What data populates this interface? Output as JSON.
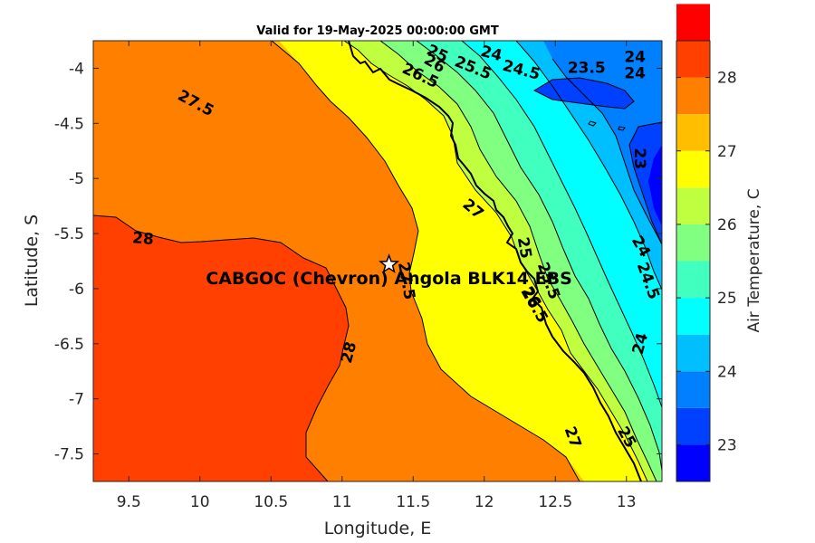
{
  "title": "Valid for 19-May-2025 00:00:00 GMT",
  "map": {
    "xlabel": "Longitude, E",
    "ylabel": "Latitude, S",
    "xlim": [
      9.25,
      13.25
    ],
    "ylim": [
      -7.75,
      -3.75
    ],
    "xticks": [
      {
        "value": 9.5,
        "label": "9.5"
      },
      {
        "value": 10,
        "label": "10"
      },
      {
        "value": 10.5,
        "label": "10.5"
      },
      {
        "value": 11,
        "label": "11"
      },
      {
        "value": 11.5,
        "label": "11.5"
      },
      {
        "value": 12,
        "label": "12"
      },
      {
        "value": 12.5,
        "label": "12.5"
      },
      {
        "value": 13,
        "label": "13"
      }
    ],
    "yticks": [
      {
        "value": -4,
        "label": "-4"
      },
      {
        "value": -4.5,
        "label": "-4.5"
      },
      {
        "value": -5,
        "label": "-5"
      },
      {
        "value": -5.5,
        "label": "-5.5"
      },
      {
        "value": -6,
        "label": "-6"
      },
      {
        "value": -6.5,
        "label": "-6.5"
      },
      {
        "value": -7,
        "label": "-7"
      },
      {
        "value": -7.5,
        "label": "-7.5"
      }
    ],
    "site": {
      "name": "CABGOC (Chevron)  Angola BLK14 EBS",
      "lon": 11.33,
      "lat": -5.78
    },
    "contour_labels": [
      {
        "text": "28",
        "lon": 9.6,
        "lat": -5.55,
        "angle": 5
      },
      {
        "text": "28",
        "lon": 11.05,
        "lat": -6.58,
        "angle": -75
      },
      {
        "text": "27.5",
        "lon": 9.97,
        "lat": -4.32,
        "angle": 28
      },
      {
        "text": "27.5",
        "lon": 11.45,
        "lat": -5.93,
        "angle": 80
      },
      {
        "text": "27",
        "lon": 11.92,
        "lat": -5.28,
        "angle": 40
      },
      {
        "text": "27",
        "lon": 12.62,
        "lat": -7.35,
        "angle": 70
      },
      {
        "text": "26.5",
        "lon": 11.55,
        "lat": -4.07,
        "angle": 25
      },
      {
        "text": "26",
        "lon": 11.65,
        "lat": -3.96,
        "angle": 30
      },
      {
        "text": "25",
        "lon": 11.67,
        "lat": -3.87,
        "angle": 25
      },
      {
        "text": "25.5",
        "lon": 11.92,
        "lat": -4.0,
        "angle": 22
      },
      {
        "text": "24",
        "lon": 12.05,
        "lat": -3.87,
        "angle": 15
      },
      {
        "text": "24.5",
        "lon": 12.26,
        "lat": -4.02,
        "angle": 15
      },
      {
        "text": "23.5",
        "lon": 12.72,
        "lat": -4.0,
        "angle": 0
      },
      {
        "text": "24",
        "lon": 13.06,
        "lat": -3.9,
        "angle": 0
      },
      {
        "text": "24",
        "lon": 13.06,
        "lat": -4.05,
        "angle": 0
      },
      {
        "text": "23",
        "lon": 13.09,
        "lat": -4.82,
        "angle": 90
      },
      {
        "text": "24",
        "lon": 13.1,
        "lat": -5.62,
        "angle": 60
      },
      {
        "text": "24.5",
        "lon": 13.15,
        "lat": -5.93,
        "angle": 70
      },
      {
        "text": "24",
        "lon": 13.1,
        "lat": -6.5,
        "angle": -75
      },
      {
        "text": "25",
        "lon": 12.28,
        "lat": -5.63,
        "angle": 80
      },
      {
        "text": "25.5",
        "lon": 12.45,
        "lat": -5.93,
        "angle": 70
      },
      {
        "text": "26",
        "lon": 12.33,
        "lat": -6.08,
        "angle": 60
      },
      {
        "text": "26.5",
        "lon": 12.35,
        "lat": -6.15,
        "angle": 60
      },
      {
        "text": "25",
        "lon": 13.0,
        "lat": -7.35,
        "angle": 60
      }
    ]
  },
  "colorbar": {
    "label": "Air Temperature, C",
    "range": [
      22.5,
      28.5
    ],
    "step": 0.5,
    "ticks": [
      {
        "value": 23,
        "label": "23"
      },
      {
        "value": 24,
        "label": "24"
      },
      {
        "value": 25,
        "label": "25"
      },
      {
        "value": 26,
        "label": "26"
      },
      {
        "value": 27,
        "label": "27"
      },
      {
        "value": 28,
        "label": "28"
      }
    ],
    "colors": [
      "#0000ff",
      "#0040ff",
      "#0080ff",
      "#00bfff",
      "#00ffff",
      "#40ffbf",
      "#80ff80",
      "#bfff40",
      "#ffff00",
      "#ffbf00",
      "#ff8000",
      "#ff4000",
      "#ff0000"
    ]
  }
}
